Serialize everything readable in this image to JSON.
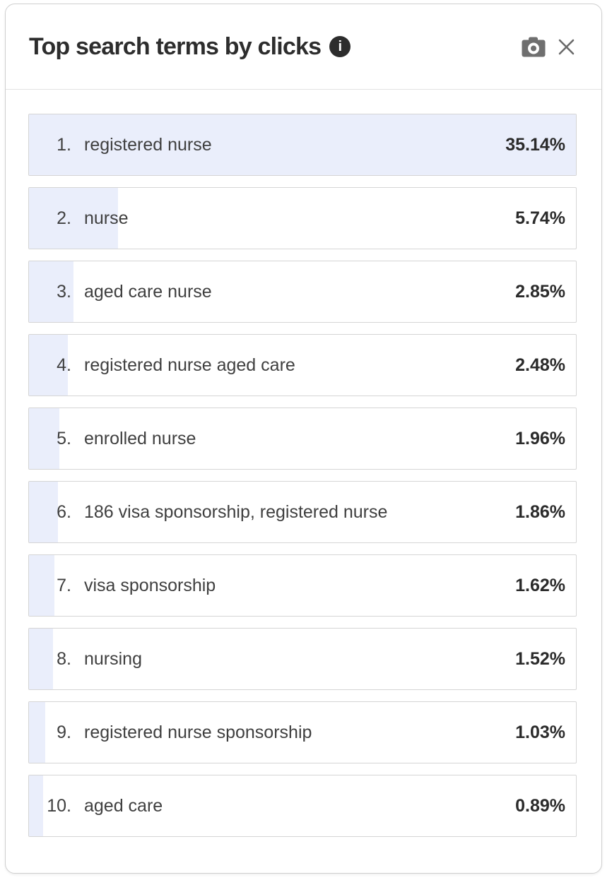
{
  "header": {
    "title": "Top search terms by clicks",
    "info_glyph": "i"
  },
  "colors": {
    "bar_fill": "#eaeefb",
    "row_border": "#d5d5d5",
    "card_border": "#cfcfcf",
    "divider": "#e2e2e2",
    "title_text": "#2d2d2d",
    "term_text": "#3f3f3f",
    "value_text": "#2b2b2b",
    "icon_gray": "#6f6f6f"
  },
  "chart_data": {
    "type": "bar",
    "orientation": "horizontal",
    "title": "Top search terms by clicks",
    "categories": [
      "registered nurse",
      "nurse",
      "aged care nurse",
      "registered nurse aged care",
      "enrolled nurse",
      "186 visa sponsorship, registered nurse",
      "visa sponsorship",
      "nursing",
      "registered nurse sponsorship",
      "aged care"
    ],
    "values": [
      35.14,
      5.74,
      2.85,
      2.48,
      1.96,
      1.86,
      1.62,
      1.52,
      1.03,
      0.89
    ],
    "value_unit": "%",
    "xlim": [
      0,
      35.14
    ],
    "bar_scale": "relative_to_max",
    "legend": "none",
    "grid": "off"
  },
  "rows": [
    {
      "rank": "1.",
      "term": "registered nurse",
      "value": "35.14%",
      "pct": 35.14
    },
    {
      "rank": "2.",
      "term": "nurse",
      "value": "5.74%",
      "pct": 5.74
    },
    {
      "rank": "3.",
      "term": "aged care nurse",
      "value": "2.85%",
      "pct": 2.85
    },
    {
      "rank": "4.",
      "term": "registered nurse aged care",
      "value": "2.48%",
      "pct": 2.48
    },
    {
      "rank": "5.",
      "term": "enrolled nurse",
      "value": "1.96%",
      "pct": 1.96
    },
    {
      "rank": "6.",
      "term": "186 visa sponsorship, registered nurse",
      "value": "1.86%",
      "pct": 1.86
    },
    {
      "rank": "7.",
      "term": "visa sponsorship",
      "value": "1.62%",
      "pct": 1.62
    },
    {
      "rank": "8.",
      "term": "nursing",
      "value": "1.52%",
      "pct": 1.52
    },
    {
      "rank": "9.",
      "term": "registered nurse sponsorship",
      "value": "1.03%",
      "pct": 1.03
    },
    {
      "rank": "10.",
      "term": "aged care",
      "value": "0.89%",
      "pct": 0.89
    }
  ]
}
